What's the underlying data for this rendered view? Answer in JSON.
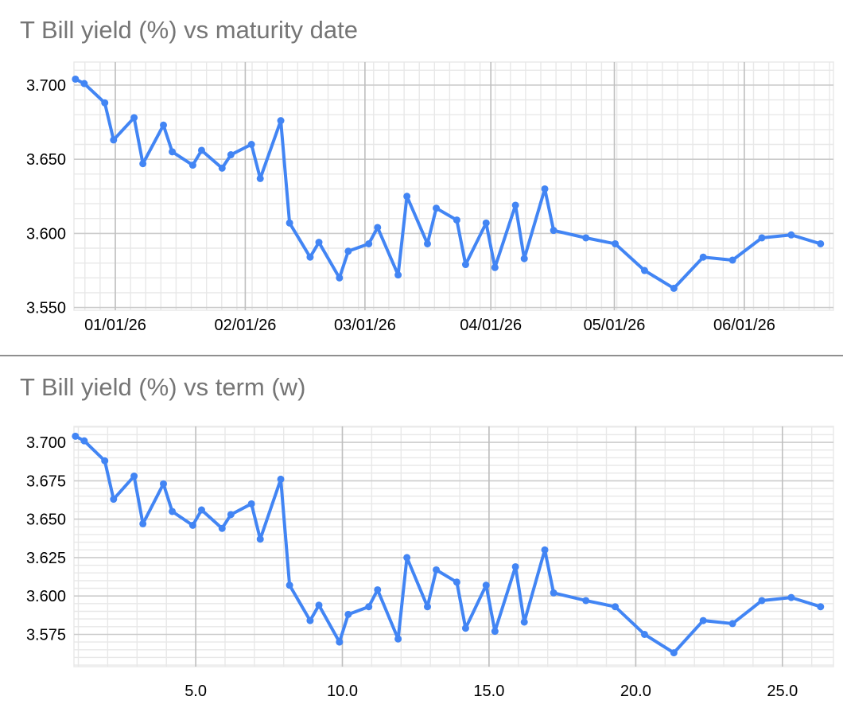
{
  "styles": {
    "background": "#ffffff",
    "series_color": "#4285f4",
    "title_color": "#757575",
    "tick_label_color": "#000000",
    "gridline_minor": "#e8e8e8",
    "gridline_major": "#cccccc",
    "gridline_major_vertical": "#bfbfbf",
    "divider_color": "#8f8f8f"
  },
  "chart_data": [
    {
      "type": "line",
      "title": "T Bill yield (%) vs maturity date",
      "series_name": "T Bill yield (%)",
      "legend": "none",
      "grid": "on",
      "x_axis": {
        "label_kind": "maturity_date",
        "tick_labels": [
          "01/01/26",
          "02/01/26",
          "03/01/26",
          "04/01/26",
          "05/01/26",
          "06/01/26"
        ],
        "tick_positions_w": [
          2.26,
          6.69,
          10.77,
          15.06,
          19.27,
          23.7
        ],
        "minor_start_w": 1.224,
        "minor_step_w": 0.518,
        "range_w": [
          0.85,
          26.74
        ]
      },
      "y_axis": {
        "tick_labels": [
          "3.550",
          "3.600",
          "3.650",
          "3.700"
        ],
        "tick_values": [
          3.55,
          3.6,
          3.65,
          3.7
        ],
        "minor_step": 0.01,
        "range": [
          3.5482,
          3.7155
        ]
      },
      "points": {
        "term_w": [
          0.9,
          1.2,
          1.9,
          2.2,
          2.9,
          3.2,
          3.9,
          4.2,
          4.9,
          5.2,
          5.9,
          6.2,
          6.9,
          7.2,
          7.9,
          8.2,
          8.9,
          9.2,
          9.9,
          10.2,
          10.9,
          11.2,
          11.9,
          12.2,
          12.9,
          13.2,
          13.9,
          14.2,
          14.9,
          15.2,
          15.9,
          16.2,
          16.9,
          17.2,
          18.3,
          19.3,
          20.3,
          21.3,
          22.3,
          23.3,
          24.3,
          25.3,
          26.3
        ],
        "yield_pct": [
          3.704,
          3.701,
          3.688,
          3.663,
          3.678,
          3.647,
          3.673,
          3.655,
          3.646,
          3.656,
          3.644,
          3.653,
          3.66,
          3.637,
          3.676,
          3.607,
          3.584,
          3.594,
          3.57,
          3.588,
          3.593,
          3.604,
          3.572,
          3.625,
          3.593,
          3.617,
          3.609,
          3.579,
          3.607,
          3.577,
          3.619,
          3.583,
          3.63,
          3.602,
          3.597,
          3.593,
          3.575,
          3.563,
          3.584,
          3.582,
          3.597,
          3.599,
          3.593
        ]
      }
    },
    {
      "type": "line",
      "title": "T Bill yield (%) vs term (w)",
      "series_name": "T Bill yield (%)",
      "legend": "none",
      "grid": "on",
      "x_axis": {
        "label_kind": "term_weeks",
        "tick_labels": [
          "5.0",
          "10.0",
          "15.0",
          "20.0",
          "25.0"
        ],
        "tick_positions_w": [
          5,
          10,
          15,
          20,
          25
        ],
        "minor_start_w": 1,
        "minor_step_w": 1,
        "range_w": [
          0.85,
          26.74
        ]
      },
      "y_axis": {
        "tick_labels": [
          "3.575",
          "3.600",
          "3.625",
          "3.650",
          "3.675",
          "3.700"
        ],
        "tick_values": [
          3.575,
          3.6,
          3.625,
          3.65,
          3.675,
          3.7
        ],
        "minor_step": 0.005,
        "range": [
          3.554,
          3.7104
        ]
      },
      "points": {
        "term_w": [
          0.9,
          1.2,
          1.9,
          2.2,
          2.9,
          3.2,
          3.9,
          4.2,
          4.9,
          5.2,
          5.9,
          6.2,
          6.9,
          7.2,
          7.9,
          8.2,
          8.9,
          9.2,
          9.9,
          10.2,
          10.9,
          11.2,
          11.9,
          12.2,
          12.9,
          13.2,
          13.9,
          14.2,
          14.9,
          15.2,
          15.9,
          16.2,
          16.9,
          17.2,
          18.3,
          19.3,
          20.3,
          21.3,
          22.3,
          23.3,
          24.3,
          25.3,
          26.3
        ],
        "yield_pct": [
          3.704,
          3.701,
          3.688,
          3.663,
          3.678,
          3.647,
          3.673,
          3.655,
          3.646,
          3.656,
          3.644,
          3.653,
          3.66,
          3.637,
          3.676,
          3.607,
          3.584,
          3.594,
          3.57,
          3.588,
          3.593,
          3.604,
          3.572,
          3.625,
          3.593,
          3.617,
          3.609,
          3.579,
          3.607,
          3.577,
          3.619,
          3.583,
          3.63,
          3.602,
          3.597,
          3.593,
          3.575,
          3.563,
          3.584,
          3.582,
          3.597,
          3.599,
          3.593
        ]
      }
    }
  ]
}
